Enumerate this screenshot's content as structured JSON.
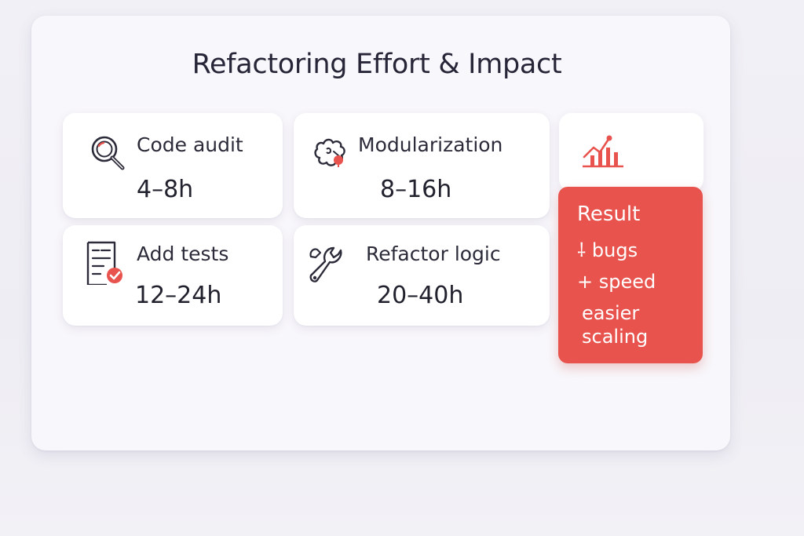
{
  "title": "Refactoring Effort & Impact",
  "tasks": [
    {
      "label": "Code audit",
      "value": "4–8h",
      "icon": "magnifier-icon"
    },
    {
      "label": "Modularization",
      "value": "8–16h",
      "icon": "puzzle-piece-icon"
    },
    {
      "label": "Add tests",
      "value": "12–24h",
      "icon": "checklist-icon"
    },
    {
      "label": "Refactor logic",
      "value": "20–40h",
      "icon": "wrench-icon"
    }
  ],
  "chart_icon": "bar-chart-trend-icon",
  "result": {
    "title": "Result",
    "items": [
      "⸸ bugs",
      "+ speed",
      "easier",
      "scaling"
    ]
  },
  "colors": {
    "accent": "#e8534d",
    "text": "#262638",
    "card": "#ffffff",
    "panel": "#f8f7fb"
  }
}
